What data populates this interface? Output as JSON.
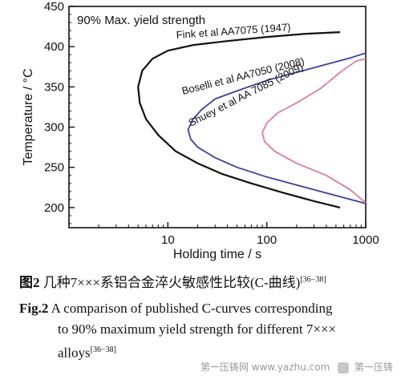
{
  "chart_data": {
    "type": "line",
    "title": "90% Max. yield strength",
    "xlabel": "Holding time / s",
    "ylabel": "Temperature / °C",
    "xscale": "log",
    "xlim": [
      1,
      1000
    ],
    "ylim": [
      175,
      450
    ],
    "xticks": [
      10,
      100,
      1000
    ],
    "xtick_labels": [
      "10",
      "100",
      "1000"
    ],
    "yticks": [
      200,
      250,
      300,
      350,
      400,
      450
    ],
    "ytick_labels": [
      "200",
      "250",
      "300",
      "350",
      "400",
      "450"
    ],
    "grid": false,
    "series": [
      {
        "name": "Fink et al AA7075 (1947)",
        "color": "#111111",
        "x": [
          550,
          250,
          100,
          40,
          18,
          10,
          7,
          5.5,
          5,
          5.2,
          6,
          8,
          12,
          20,
          35,
          70,
          150,
          300,
          550
        ],
        "y": [
          418,
          416,
          412,
          407,
          402,
          395,
          385,
          370,
          350,
          330,
          310,
          290,
          270,
          255,
          242,
          230,
          218,
          208,
          200
        ]
      },
      {
        "name": "Boselli et al AA7050 (2008)",
        "color": "#3a3f9e",
        "x": [
          1000,
          700,
          400,
          200,
          100,
          50,
          30,
          22,
          18,
          16,
          17,
          20,
          30,
          50,
          100,
          200,
          400,
          1000
        ],
        "y": [
          392,
          386,
          378,
          368,
          358,
          345,
          335,
          322,
          310,
          297,
          285,
          275,
          262,
          250,
          238,
          228,
          218,
          205
        ]
      },
      {
        "name": "Shuey et al AA 7085 (2009)",
        "color": "#e07a9c",
        "x": [
          1000,
          800,
          550,
          350,
          200,
          130,
          100,
          90,
          95,
          120,
          200,
          400,
          700,
          1000
        ],
        "y": [
          385,
          382,
          368,
          348,
          330,
          318,
          305,
          293,
          282,
          270,
          255,
          240,
          222,
          206
        ]
      }
    ],
    "annotations": [
      {
        "text": "Fink et al AA7075 (1947)",
        "series": 0
      },
      {
        "text": "Boselli et al AA7050 (2008)",
        "series": 1
      },
      {
        "text": "Shuey et al AA 7085 (2009)",
        "series": 2
      }
    ]
  },
  "captions": {
    "cn_fig": "图2",
    "cn_text": " 几种7×××系铝合金淬火敏感性比较(C-曲线)",
    "cn_refs": "[36−38]",
    "en_fig": "Fig.2",
    "en_line1": " A comparison of published C-curves corresponding",
    "en_line2": "to 90% maximum yield strength for different 7×××",
    "en_line3": "alloys",
    "en_refs": "[36−38]"
  },
  "watermark": {
    "left_text": "第一压铸网",
    "mid_text": "www.yazhu.com",
    "right_text": "第一压铸"
  }
}
